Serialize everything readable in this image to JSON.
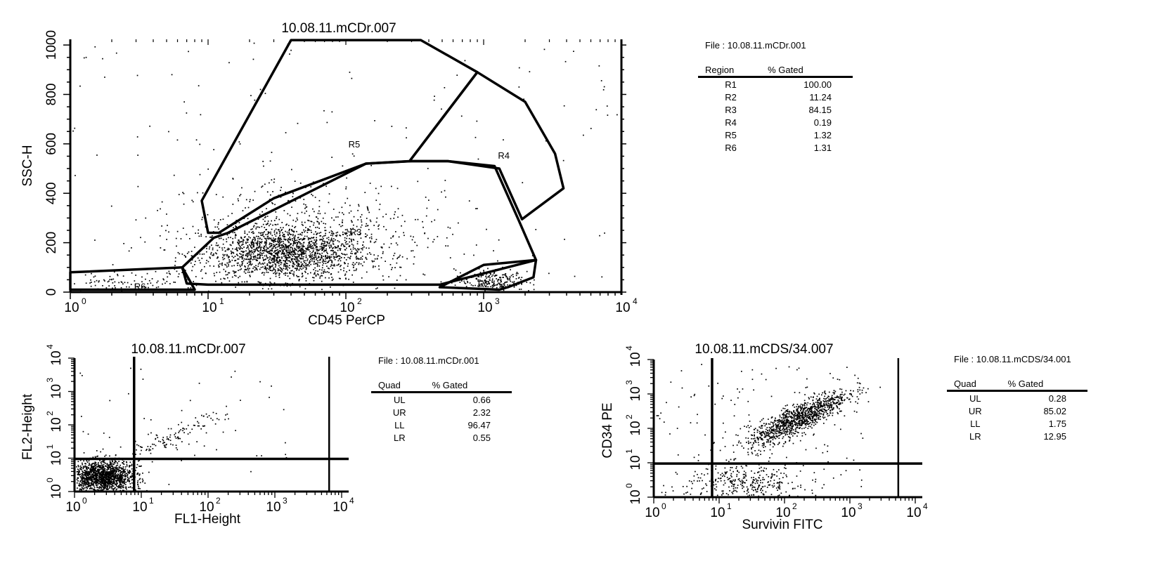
{
  "chart_data": [
    {
      "type": "scatter",
      "title": "10.08.11.mCDr.007",
      "xlabel": "CD45 PerCP",
      "ylabel": "SSC-H",
      "x_scale": "log",
      "xlim": [
        1,
        10000
      ],
      "ylim": [
        0,
        1023
      ],
      "x_ticks": [
        {
          "base": "10",
          "exp": "0"
        },
        {
          "base": "10",
          "exp": "1"
        },
        {
          "base": "10",
          "exp": "2"
        },
        {
          "base": "10",
          "exp": "3"
        },
        {
          "base": "10",
          "exp": "4"
        }
      ],
      "y_ticks": [
        "0",
        "200",
        "400",
        "600",
        "800",
        "1000"
      ],
      "y_tick_values": [
        0,
        200,
        400,
        600,
        800,
        1000
      ],
      "gates": [
        {
          "name": "R2",
          "points": [
            [
              480,
              20
            ],
            [
              1000,
              110
            ],
            [
              2400,
              130
            ],
            [
              2300,
              60
            ],
            [
              1500,
              20
            ],
            [
              1300,
              10
            ]
          ],
          "label_at": [
            1000,
            20
          ]
        },
        {
          "name": "R3",
          "points": [
            [
              6.5,
              100
            ],
            [
              7,
              35
            ],
            [
              10,
              30
            ],
            [
              480,
              30
            ],
            [
              2400,
              130
            ],
            [
              1800,
              290
            ],
            [
              1200,
              510
            ],
            [
              550,
              530
            ],
            [
              300,
              530
            ],
            [
              140,
              520
            ],
            [
              14,
              240
            ],
            [
              11,
              220
            ]
          ],
          "label_at": [
            118,
            230
          ]
        },
        {
          "name": "R4",
          "points": [
            [
              290,
              530
            ],
            [
              900,
              890
            ],
            [
              2000,
              770
            ],
            [
              3300,
              560
            ],
            [
              3800,
              420
            ],
            [
              1900,
              295
            ],
            [
              1300,
              500
            ],
            [
              550,
              530
            ]
          ],
          "label_at": [
            1400,
            540
          ]
        },
        {
          "name": "R5",
          "points": [
            [
              9,
              370
            ],
            [
              40,
              1020
            ],
            [
              350,
              1020
            ],
            [
              900,
              890
            ],
            [
              290,
              530
            ],
            [
              140,
              520
            ],
            [
              30,
              380
            ],
            [
              12,
              240
            ],
            [
              10,
              240
            ]
          ],
          "label_at": [
            115,
            585
          ]
        },
        {
          "name": "R6",
          "points": [
            [
              1,
              80
            ],
            [
              6.5,
              100
            ],
            [
              8,
              10
            ],
            [
              1,
              10
            ]
          ],
          "label_at": [
            3.2,
            10
          ]
        }
      ]
    },
    {
      "type": "scatter",
      "title": "10.08.11.mCDr.007",
      "xlabel": "FL1-Height",
      "ylabel": "FL2-Height",
      "x_scale": "log",
      "y_scale": "log",
      "xlim": [
        1,
        10000
      ],
      "ylim": [
        1,
        10000
      ],
      "x_ticks": [
        {
          "base": "10",
          "exp": "0"
        },
        {
          "base": "10",
          "exp": "1"
        },
        {
          "base": "10",
          "exp": "2"
        },
        {
          "base": "10",
          "exp": "3"
        },
        {
          "base": "10",
          "exp": "4"
        }
      ],
      "y_ticks": [
        {
          "base": "10",
          "exp": "0"
        },
        {
          "base": "10",
          "exp": "1"
        },
        {
          "base": "10",
          "exp": "2"
        },
        {
          "base": "10",
          "exp": "3"
        },
        {
          "base": "10",
          "exp": "4"
        }
      ],
      "quadrant_lines": {
        "x": 7.8,
        "y": 9.5
      },
      "right_line_x": 6500
    },
    {
      "type": "scatter",
      "title": "10.08.11.mCDS/34.007",
      "xlabel": "Survivin FITC",
      "ylabel": "CD34 PE",
      "x_scale": "log",
      "y_scale": "log",
      "xlim": [
        1,
        10000
      ],
      "ylim": [
        1,
        10000
      ],
      "x_ticks": [
        {
          "base": "10",
          "exp": "0"
        },
        {
          "base": "10",
          "exp": "1"
        },
        {
          "base": "10",
          "exp": "2"
        },
        {
          "base": "10",
          "exp": "3"
        },
        {
          "base": "10",
          "exp": "4"
        }
      ],
      "y_ticks": [
        {
          "base": "10",
          "exp": "0"
        },
        {
          "base": "10",
          "exp": "1"
        },
        {
          "base": "10",
          "exp": "2"
        },
        {
          "base": "10",
          "exp": "3"
        },
        {
          "base": "10",
          "exp": "4"
        }
      ],
      "quadrant_lines": {
        "x": 7.8,
        "y": 9.5
      },
      "right_line_x": 5500
    }
  ],
  "stats": [
    {
      "file": "File : 10.08.11.mCDr.001",
      "headers": [
        "Region",
        "% Gated"
      ],
      "rows": [
        [
          "R1",
          "100.00"
        ],
        [
          "R2",
          "11.24"
        ],
        [
          "R3",
          "84.15"
        ],
        [
          "R4",
          "0.19"
        ],
        [
          "R5",
          "1.32"
        ],
        [
          "R6",
          "1.31"
        ]
      ]
    },
    {
      "file": "File : 10.08.11.mCDr.001",
      "headers": [
        "Quad",
        "% Gated"
      ],
      "rows": [
        [
          "UL",
          "0.66"
        ],
        [
          "UR",
          "2.32"
        ],
        [
          "LL",
          "96.47"
        ],
        [
          "LR",
          "0.55"
        ]
      ]
    },
    {
      "file": "File : 10.08.11.mCDS/34.001",
      "headers": [
        "Quad",
        "% Gated"
      ],
      "rows": [
        [
          "UL",
          "0.28"
        ],
        [
          "UR",
          "85.02"
        ],
        [
          "LL",
          "1.75"
        ],
        [
          "LR",
          "12.95"
        ]
      ]
    }
  ]
}
